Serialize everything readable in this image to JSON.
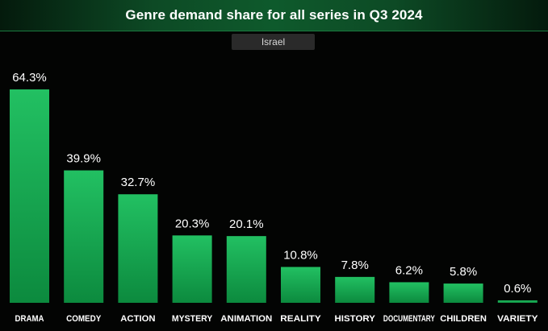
{
  "header": {
    "title": "Genre demand share for all series in Q3 2024",
    "region_filter": "Israel"
  },
  "colors": {
    "bar_top": "#22c062",
    "bar_bottom": "#0c8a3e",
    "background": "#030403",
    "label": "#ffffff"
  },
  "chart_data": {
    "type": "bar",
    "title": "Genre demand share for all series in Q3 2024",
    "subtitle": "Israel",
    "categories": [
      "DRAMA",
      "COMEDY",
      "ACTION",
      "MYSTERY",
      "ANIMATION",
      "REALITY",
      "HISTORY",
      "DOCUMENTARY",
      "CHILDREN",
      "VARIETY"
    ],
    "values": [
      64.3,
      39.9,
      32.7,
      20.3,
      20.1,
      10.8,
      7.8,
      6.2,
      5.8,
      0.6
    ],
    "value_labels": [
      "64.3%",
      "39.9%",
      "32.7%",
      "20.3%",
      "20.1%",
      "10.8%",
      "7.8%",
      "6.2%",
      "5.8%",
      "0.6%"
    ],
    "unit": "%",
    "ylim": [
      0,
      64.3
    ],
    "grid": false,
    "legend": "none"
  }
}
